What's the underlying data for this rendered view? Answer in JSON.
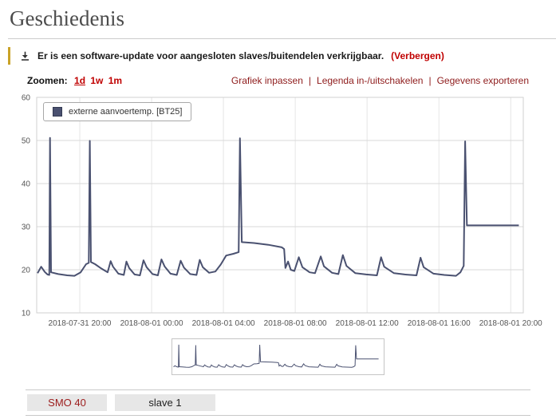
{
  "page": {
    "title": "Geschiedenis"
  },
  "alert": {
    "icon": "download-icon",
    "text": "Er is een software-update voor aangesloten slaves/buitendelen verkrijgbaar.",
    "dismiss_label": "(Verbergen)"
  },
  "controls": {
    "zoom_label": "Zoomen:",
    "zoom_options": [
      {
        "label": "1d",
        "active": true
      },
      {
        "label": "1w",
        "active": false
      },
      {
        "label": "1m",
        "active": false
      }
    ],
    "separator": "|",
    "links": [
      "Grafiek inpassen",
      "Legenda in-/uitschakelen",
      "Gegevens exporteren"
    ]
  },
  "chart_data": {
    "type": "line",
    "title": "",
    "xlabel": "",
    "ylabel": "",
    "x_unit": "hours since 2018-07-31 18:00",
    "xlim": [
      -0.4,
      26.7
    ],
    "ylim": [
      10,
      60
    ],
    "grid": true,
    "legend_position": "top-left-inside",
    "y_ticks": [
      10,
      20,
      30,
      40,
      50,
      60
    ],
    "x_ticks": [
      {
        "t": 2,
        "label": "2018-07-31 20:00"
      },
      {
        "t": 6,
        "label": "2018-08-01 00:00"
      },
      {
        "t": 10,
        "label": "2018-08-01 04:00"
      },
      {
        "t": 14,
        "label": "2018-08-01 08:00"
      },
      {
        "t": 18,
        "label": "2018-08-01 12:00"
      },
      {
        "t": 22,
        "label": "2018-08-01 16:00"
      },
      {
        "t": 26,
        "label": "2018-08-01 20:00"
      }
    ],
    "series": [
      {
        "name": "externe aanvoertemp. [BT25]",
        "color": "#4a5170",
        "points": [
          [
            -0.35,
            19.2
          ],
          [
            -0.15,
            20.7
          ],
          [
            0.05,
            19.5
          ],
          [
            0.2,
            18.9
          ],
          [
            0.3,
            18.8
          ],
          [
            0.34,
            50.6
          ],
          [
            0.4,
            19.4
          ],
          [
            0.8,
            19.0
          ],
          [
            1.3,
            18.7
          ],
          [
            1.7,
            18.6
          ],
          [
            2.05,
            19.4
          ],
          [
            2.35,
            21.3
          ],
          [
            2.5,
            21.6
          ],
          [
            2.56,
            49.9
          ],
          [
            2.62,
            21.8
          ],
          [
            2.85,
            21.3
          ],
          [
            3.2,
            20.3
          ],
          [
            3.55,
            19.4
          ],
          [
            3.72,
            22.0
          ],
          [
            3.85,
            20.7
          ],
          [
            4.15,
            19.1
          ],
          [
            4.45,
            18.8
          ],
          [
            4.6,
            21.9
          ],
          [
            4.75,
            20.4
          ],
          [
            5.05,
            18.9
          ],
          [
            5.35,
            18.7
          ],
          [
            5.55,
            22.2
          ],
          [
            5.72,
            20.6
          ],
          [
            6.05,
            19.0
          ],
          [
            6.35,
            18.7
          ],
          [
            6.55,
            22.4
          ],
          [
            6.72,
            20.8
          ],
          [
            7.05,
            19.1
          ],
          [
            7.4,
            18.8
          ],
          [
            7.62,
            22.1
          ],
          [
            7.8,
            20.5
          ],
          [
            8.15,
            19.0
          ],
          [
            8.5,
            18.8
          ],
          [
            8.68,
            22.3
          ],
          [
            8.85,
            20.6
          ],
          [
            9.2,
            19.3
          ],
          [
            9.55,
            19.6
          ],
          [
            9.85,
            21.2
          ],
          [
            10.15,
            23.3
          ],
          [
            10.55,
            23.7
          ],
          [
            10.85,
            24.1
          ],
          [
            10.92,
            50.5
          ],
          [
            11.02,
            26.4
          ],
          [
            11.7,
            26.2
          ],
          [
            12.5,
            25.8
          ],
          [
            13.25,
            25.2
          ],
          [
            13.38,
            24.8
          ],
          [
            13.45,
            20.4
          ],
          [
            13.6,
            21.9
          ],
          [
            13.75,
            20.0
          ],
          [
            13.95,
            19.7
          ],
          [
            14.2,
            22.9
          ],
          [
            14.4,
            20.6
          ],
          [
            14.8,
            19.4
          ],
          [
            15.1,
            19.2
          ],
          [
            15.42,
            23.1
          ],
          [
            15.6,
            20.8
          ],
          [
            16.05,
            19.3
          ],
          [
            16.4,
            19.0
          ],
          [
            16.65,
            23.4
          ],
          [
            16.85,
            20.9
          ],
          [
            17.35,
            19.2
          ],
          [
            17.95,
            18.9
          ],
          [
            18.55,
            18.7
          ],
          [
            18.78,
            22.9
          ],
          [
            18.95,
            20.7
          ],
          [
            19.5,
            19.2
          ],
          [
            20.1,
            18.9
          ],
          [
            20.75,
            18.7
          ],
          [
            20.98,
            22.8
          ],
          [
            21.15,
            20.6
          ],
          [
            21.7,
            19.1
          ],
          [
            22.3,
            18.8
          ],
          [
            22.95,
            18.6
          ],
          [
            23.2,
            19.4
          ],
          [
            23.38,
            20.9
          ],
          [
            23.46,
            49.8
          ],
          [
            23.56,
            30.3
          ],
          [
            26.45,
            30.3
          ]
        ]
      }
    ]
  },
  "tabs": [
    {
      "label": "SMO 40",
      "active": true
    },
    {
      "label": "slave 1",
      "active": false
    }
  ],
  "colors": {
    "title-text": "#4c4c4c",
    "alert-accent": "#c9a227",
    "bright-red": "#c00000",
    "link-red": "#8e1b1b",
    "series-line": "#4a5170",
    "grid-line": "#d8d8d8",
    "axis-text": "#555555",
    "tab-bg": "#e7e7e7",
    "tab-smo-text": "#9c1b1b"
  }
}
